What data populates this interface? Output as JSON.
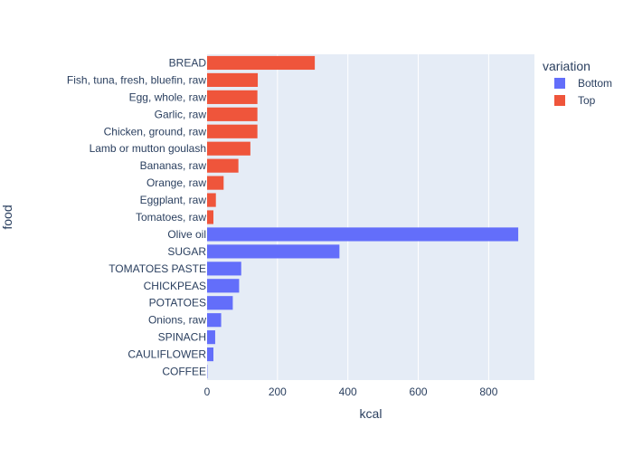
{
  "chart_data": {
    "type": "bar",
    "orientation": "horizontal",
    "xlabel": "kcal",
    "ylabel": "food",
    "xlim": [
      0,
      930
    ],
    "xticks": [
      0,
      200,
      400,
      600,
      800
    ],
    "grid": true,
    "categories": [
      "BREAD",
      "Fish, tuna, fresh, bluefin, raw",
      "Egg, whole, raw",
      "Garlic, raw",
      "Chicken, ground, raw",
      "Lamb or mutton goulash",
      "Bananas, raw",
      "Orange, raw",
      "Eggplant, raw",
      "Tomatoes, raw",
      "Olive oil",
      "SUGAR",
      "TOMATOES PASTE",
      "CHICKPEAS",
      "POTATOES",
      "Onions, raw",
      "SPINACH",
      "CAULIFLOWER",
      "COFFEE"
    ],
    "legend": {
      "title": "variation",
      "position": "top-right"
    },
    "series": [
      {
        "name": "Top",
        "color": "#EF553B",
        "points": [
          {
            "category": "BREAD",
            "value": 306
          },
          {
            "category": "Fish, tuna, fresh, bluefin, raw",
            "value": 144
          },
          {
            "category": "Egg, whole, raw",
            "value": 143
          },
          {
            "category": "Garlic, raw",
            "value": 143
          },
          {
            "category": "Chicken, ground, raw",
            "value": 143
          },
          {
            "category": "Lamb or mutton goulash",
            "value": 123
          },
          {
            "category": "Bananas, raw",
            "value": 89
          },
          {
            "category": "Orange, raw",
            "value": 47
          },
          {
            "category": "Eggplant, raw",
            "value": 25
          },
          {
            "category": "Tomatoes, raw",
            "value": 18
          }
        ]
      },
      {
        "name": "Bottom",
        "color": "#636EFA",
        "points": [
          {
            "category": "Olive oil",
            "value": 884
          },
          {
            "category": "SUGAR",
            "value": 376
          },
          {
            "category": "TOMATOES PASTE",
            "value": 97
          },
          {
            "category": "CHICKPEAS",
            "value": 91
          },
          {
            "category": "POTATOES",
            "value": 73
          },
          {
            "category": "Onions, raw",
            "value": 40
          },
          {
            "category": "SPINACH",
            "value": 23
          },
          {
            "category": "CAULIFLOWER",
            "value": 18
          },
          {
            "category": "COFFEE",
            "value": 1
          }
        ]
      }
    ],
    "legend_order": [
      "Bottom",
      "Top"
    ]
  }
}
